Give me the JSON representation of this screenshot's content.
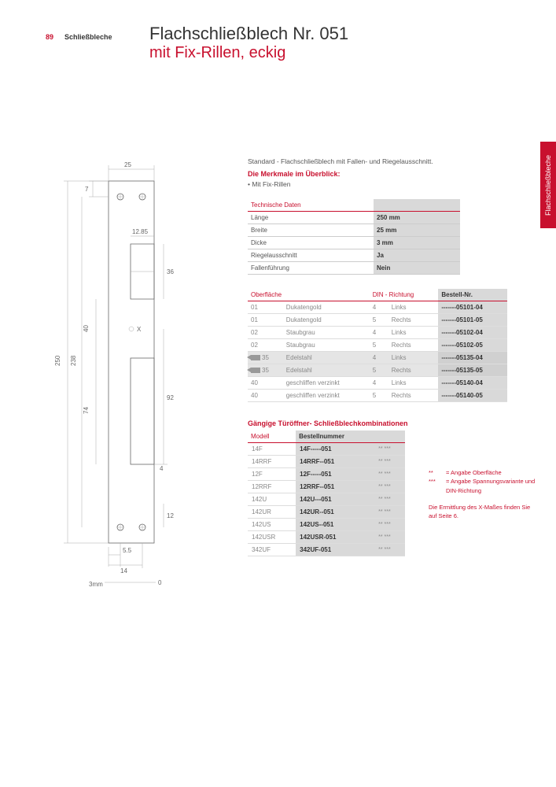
{
  "page_number": "89",
  "breadcrumb": "Schließbleche",
  "title_main": "Flachschließblech Nr. 051",
  "title_sub": "mit Fix-Rillen, eckig",
  "side_tab": "Flachschließbleche",
  "intro": "Standard - Flachschließblech mit Fallen- und Riegelausschnitt.",
  "features_heading": "Die Merkmale im Überblick:",
  "feature_1": "• Mit Fix-Rillen",
  "tech_header": "Technische Daten",
  "tech_rows": [
    {
      "label": "Länge",
      "value": "250 mm"
    },
    {
      "label": "Breite",
      "value": "25 mm"
    },
    {
      "label": "Dicke",
      "value": "3 mm"
    },
    {
      "label": "Riegelausschnitt",
      "value": "Ja"
    },
    {
      "label": "Fallenführung",
      "value": "Nein"
    }
  ],
  "order_headers": {
    "surface": "Oberfläche",
    "din": "DIN - Richtung",
    "ordernum": "Bestell-Nr."
  },
  "order_rows": [
    {
      "code": "01",
      "surf": "Dukatengold",
      "dinnum": "4",
      "dinside": "Links",
      "num": "-------05101-04",
      "hl": false
    },
    {
      "code": "01",
      "surf": "Dukatengold",
      "dinnum": "5",
      "dinside": "Rechts",
      "num": "-------05101-05",
      "hl": false
    },
    {
      "code": "02",
      "surf": "Staubgrau",
      "dinnum": "4",
      "dinside": "Links",
      "num": "-------05102-04",
      "hl": false
    },
    {
      "code": "02",
      "surf": "Staubgrau",
      "dinnum": "5",
      "dinside": "Rechts",
      "num": "-------05102-05",
      "hl": false
    },
    {
      "code": "35",
      "surf": "Edelstahl",
      "dinnum": "4",
      "dinside": "Links",
      "num": "-------05135-04",
      "hl": true
    },
    {
      "code": "35",
      "surf": "Edelstahl",
      "dinnum": "5",
      "dinside": "Rechts",
      "num": "-------05135-05",
      "hl": true
    },
    {
      "code": "40",
      "surf": "geschliffen verzinkt",
      "dinnum": "4",
      "dinside": "Links",
      "num": "-------05140-04",
      "hl": false
    },
    {
      "code": "40",
      "surf": "geschliffen verzinkt",
      "dinnum": "5",
      "dinside": "Rechts",
      "num": "-------05140-05",
      "hl": false
    }
  ],
  "combo_heading": "Gängige Türöffner- Schließblechkombinationen",
  "combo_headers": {
    "model": "Modell",
    "num": "Bestellnummer"
  },
  "combo_rows": [
    {
      "model": "14F",
      "num": "14F-----051",
      "stars": "**  ***"
    },
    {
      "model": "14RRF",
      "num": "14RRF--051",
      "stars": "**  ***"
    },
    {
      "model": "12F",
      "num": "12F-----051",
      "stars": "**  ***"
    },
    {
      "model": "12RRF",
      "num": "12RRF--051",
      "stars": "**  ***"
    },
    {
      "model": "142U",
      "num": "142U---051",
      "stars": "**  ***"
    },
    {
      "model": "142UR",
      "num": "142UR--051",
      "stars": "**  ***"
    },
    {
      "model": "142US",
      "num": "142US--051",
      "stars": "**  ***"
    },
    {
      "model": "142USR",
      "num": "142USR-051",
      "stars": "**  ***"
    },
    {
      "model": "342UF",
      "num": "342UF-051",
      "stars": "**  ***"
    }
  ],
  "legend": {
    "l1_sym": "**",
    "l1_txt": "= Angabe Oberfläche",
    "l2_sym": "***",
    "l2_txt": "= Angabe Spannungs­variante und DIN-Richtung",
    "note": "Die Ermittlung des X-Maßes finden Sie auf Seite 6."
  },
  "dims": {
    "w_top": "25",
    "h_total": "250",
    "h_upper": "238",
    "cut_w": "12.85",
    "d_36": "36",
    "d_40": "40",
    "d_92": "92",
    "d_74": "74",
    "d_4": "4",
    "d_12": "12",
    "d_55": "5.5",
    "d_14": "14",
    "d_3mm": "3mm",
    "d_0": "0",
    "d_7": "7",
    "x_label": "X"
  }
}
